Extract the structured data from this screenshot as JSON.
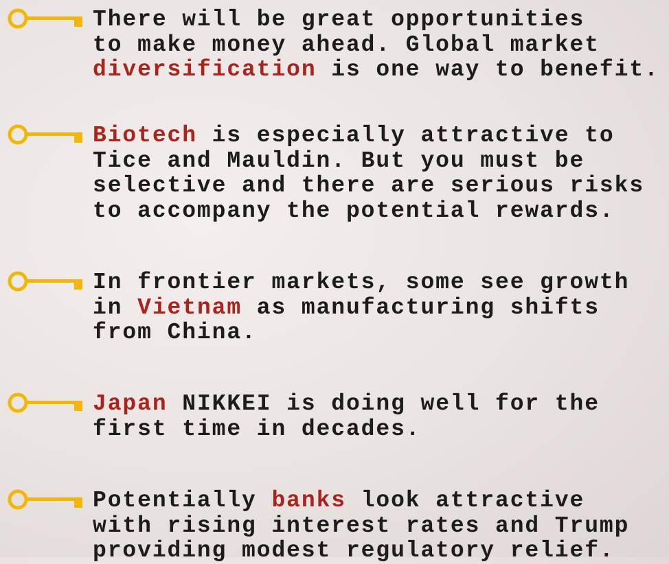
{
  "items": [
    {
      "lines": [
        [
          {
            "text": "There will be great opportunities"
          }
        ],
        [
          {
            "text": "to make money ahead. Global market"
          }
        ],
        [
          {
            "text": "diversification",
            "emphasis": true
          },
          {
            "text": " is one way to benefit."
          }
        ]
      ]
    },
    {
      "lines": [
        [
          {
            "text": "Biotech",
            "emphasis": true
          },
          {
            "text": " is especially attractive to"
          }
        ],
        [
          {
            "text": "Tice and Mauldin. But you must be"
          }
        ],
        [
          {
            "text": "selective and there are serious risks"
          }
        ],
        [
          {
            "text": "to accompany the potential rewards."
          }
        ]
      ]
    },
    {
      "lines": [
        [
          {
            "text": "In frontier markets, some see growth"
          }
        ],
        [
          {
            "text": "in "
          },
          {
            "text": "Vietnam",
            "emphasis": true
          },
          {
            "text": " as manufacturing shifts"
          }
        ],
        [
          {
            "text": "from China."
          }
        ]
      ]
    },
    {
      "lines": [
        [
          {
            "text": "Japan",
            "emphasis": true
          },
          {
            "text": " NIKKEI is doing well for the"
          }
        ],
        [
          {
            "text": "first time in decades."
          }
        ]
      ]
    },
    {
      "lines": [
        [
          {
            "text": "Potentially "
          },
          {
            "text": "banks",
            "emphasis": true
          },
          {
            "text": " look attractive"
          }
        ],
        [
          {
            "text": "with rising interest rates and Trump"
          }
        ],
        [
          {
            "text": "providing modest regulatory relief."
          }
        ]
      ]
    }
  ]
}
